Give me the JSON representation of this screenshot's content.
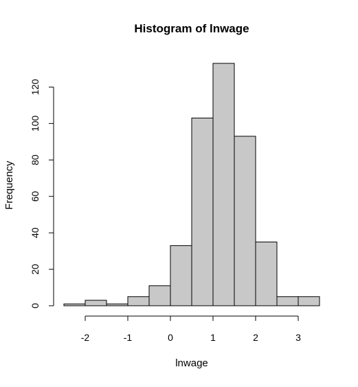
{
  "chart_data": {
    "type": "bar",
    "title": "Histogram of lnwage",
    "xlabel": "lnwage",
    "ylabel": "Frequency",
    "bin_edges": [
      -2.5,
      -2.0,
      -1.5,
      -1.0,
      -0.5,
      0.0,
      0.5,
      1.0,
      1.5,
      2.0,
      2.5,
      3.0,
      3.5
    ],
    "values": [
      1,
      3,
      1,
      5,
      11,
      33,
      103,
      133,
      93,
      35,
      5,
      5
    ],
    "xlim": [
      -2.5,
      3.5
    ],
    "ylim": [
      0,
      133
    ],
    "x_ticks": [
      -2,
      -1,
      0,
      1,
      2,
      3
    ],
    "x_tick_labels": [
      "-2",
      "-1",
      "0",
      "1",
      "2",
      "3"
    ],
    "y_ticks": [
      0,
      20,
      40,
      60,
      80,
      100,
      120
    ],
    "y_tick_labels": [
      "0",
      "20",
      "40",
      "60",
      "80",
      "100",
      "120"
    ],
    "grid": false,
    "bar_color": "#c8c8c8",
    "edge_color": "#000000"
  }
}
